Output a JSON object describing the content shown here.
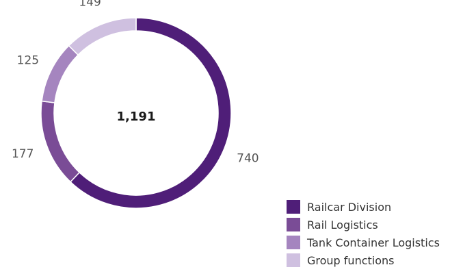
{
  "chart_data": {
    "type": "pie",
    "donut": true,
    "total_label": "1,191",
    "categories": [
      "Railcar Division",
      "Rail Logistics",
      "Tank Container Logistics",
      "Group functions"
    ],
    "values": [
      740,
      177,
      125,
      149
    ],
    "value_labels": [
      "740",
      "177",
      "125",
      "149"
    ],
    "colors": [
      "#4f1e78",
      "#7a4c96",
      "#a585bf",
      "#cfc0e0"
    ],
    "legend_position": "bottom-right"
  }
}
